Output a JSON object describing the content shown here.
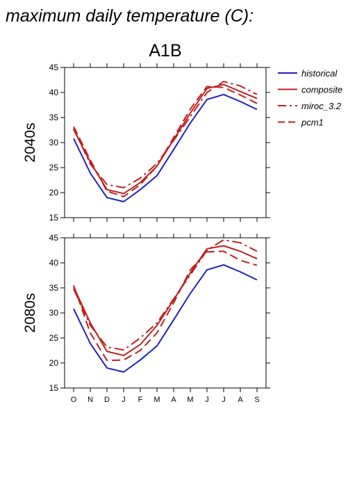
{
  "page_title": "maximum daily temperature (C):",
  "chart_data": {
    "type": "line",
    "title": "A1B",
    "months": [
      "O",
      "N",
      "D",
      "J",
      "F",
      "M",
      "A",
      "M",
      "J",
      "J",
      "A",
      "S"
    ],
    "ylim": [
      15,
      45
    ],
    "yticks": [
      15,
      20,
      25,
      30,
      35,
      40,
      45
    ],
    "legend_position": "top-right, outside plot",
    "colors": {
      "historical": "#1f1fbf",
      "projection": "#bf1f1f"
    },
    "legend": [
      {
        "name": "historical",
        "color": "#1f1fbf",
        "dash": "solid"
      },
      {
        "name": "composite",
        "color": "#bf1f1f",
        "dash": "solid"
      },
      {
        "name": "miroc_3.2",
        "color": "#bf1f1f",
        "dash": "dashdot"
      },
      {
        "name": "pcm1",
        "color": "#bf1f1f",
        "dash": "dash"
      }
    ],
    "panels": [
      {
        "ylabel": "2040s",
        "series": [
          {
            "name": "historical",
            "values": [
              30.8,
              23.9,
              19.0,
              18.2,
              20.6,
              23.4,
              28.6,
              33.9,
              38.6,
              39.6,
              38.2,
              36.6
            ]
          },
          {
            "name": "composite",
            "values": [
              32.6,
              26.1,
              20.6,
              19.8,
              22.0,
              25.3,
              30.6,
              35.9,
              40.8,
              41.6,
              40.2,
              38.8
            ]
          },
          {
            "name": "miroc_3.2",
            "values": [
              32.8,
              25.7,
              21.6,
              21.0,
              22.9,
              25.8,
              30.4,
              35.2,
              40.0,
              42.2,
              41.3,
              39.6
            ]
          },
          {
            "name": "pcm1",
            "values": [
              33.2,
              26.5,
              20.3,
              19.2,
              21.6,
              25.3,
              31.0,
              36.7,
              41.2,
              41.0,
              39.5,
              37.8
            ]
          }
        ]
      },
      {
        "ylabel": "2080s",
        "series": [
          {
            "name": "historical",
            "values": [
              30.8,
              23.9,
              19.0,
              18.2,
              20.6,
              23.4,
              28.6,
              33.9,
              38.6,
              39.6,
              38.2,
              36.6
            ]
          },
          {
            "name": "composite",
            "values": [
              35.2,
              28.0,
              22.3,
              21.5,
              23.7,
              27.5,
              32.6,
              38.0,
              42.8,
              43.4,
              42.3,
              40.8
            ]
          },
          {
            "name": "miroc_3.2",
            "values": [
              34.8,
              27.5,
              23.2,
              22.6,
              25.0,
              28.0,
              32.8,
              37.6,
              42.5,
              44.6,
              44.0,
              42.3
            ]
          },
          {
            "name": "pcm1",
            "values": [
              35.5,
              26.0,
              20.5,
              20.6,
              22.5,
              26.0,
              32.0,
              38.6,
              42.2,
              42.3,
              40.5,
              39.5
            ]
          }
        ]
      }
    ]
  }
}
